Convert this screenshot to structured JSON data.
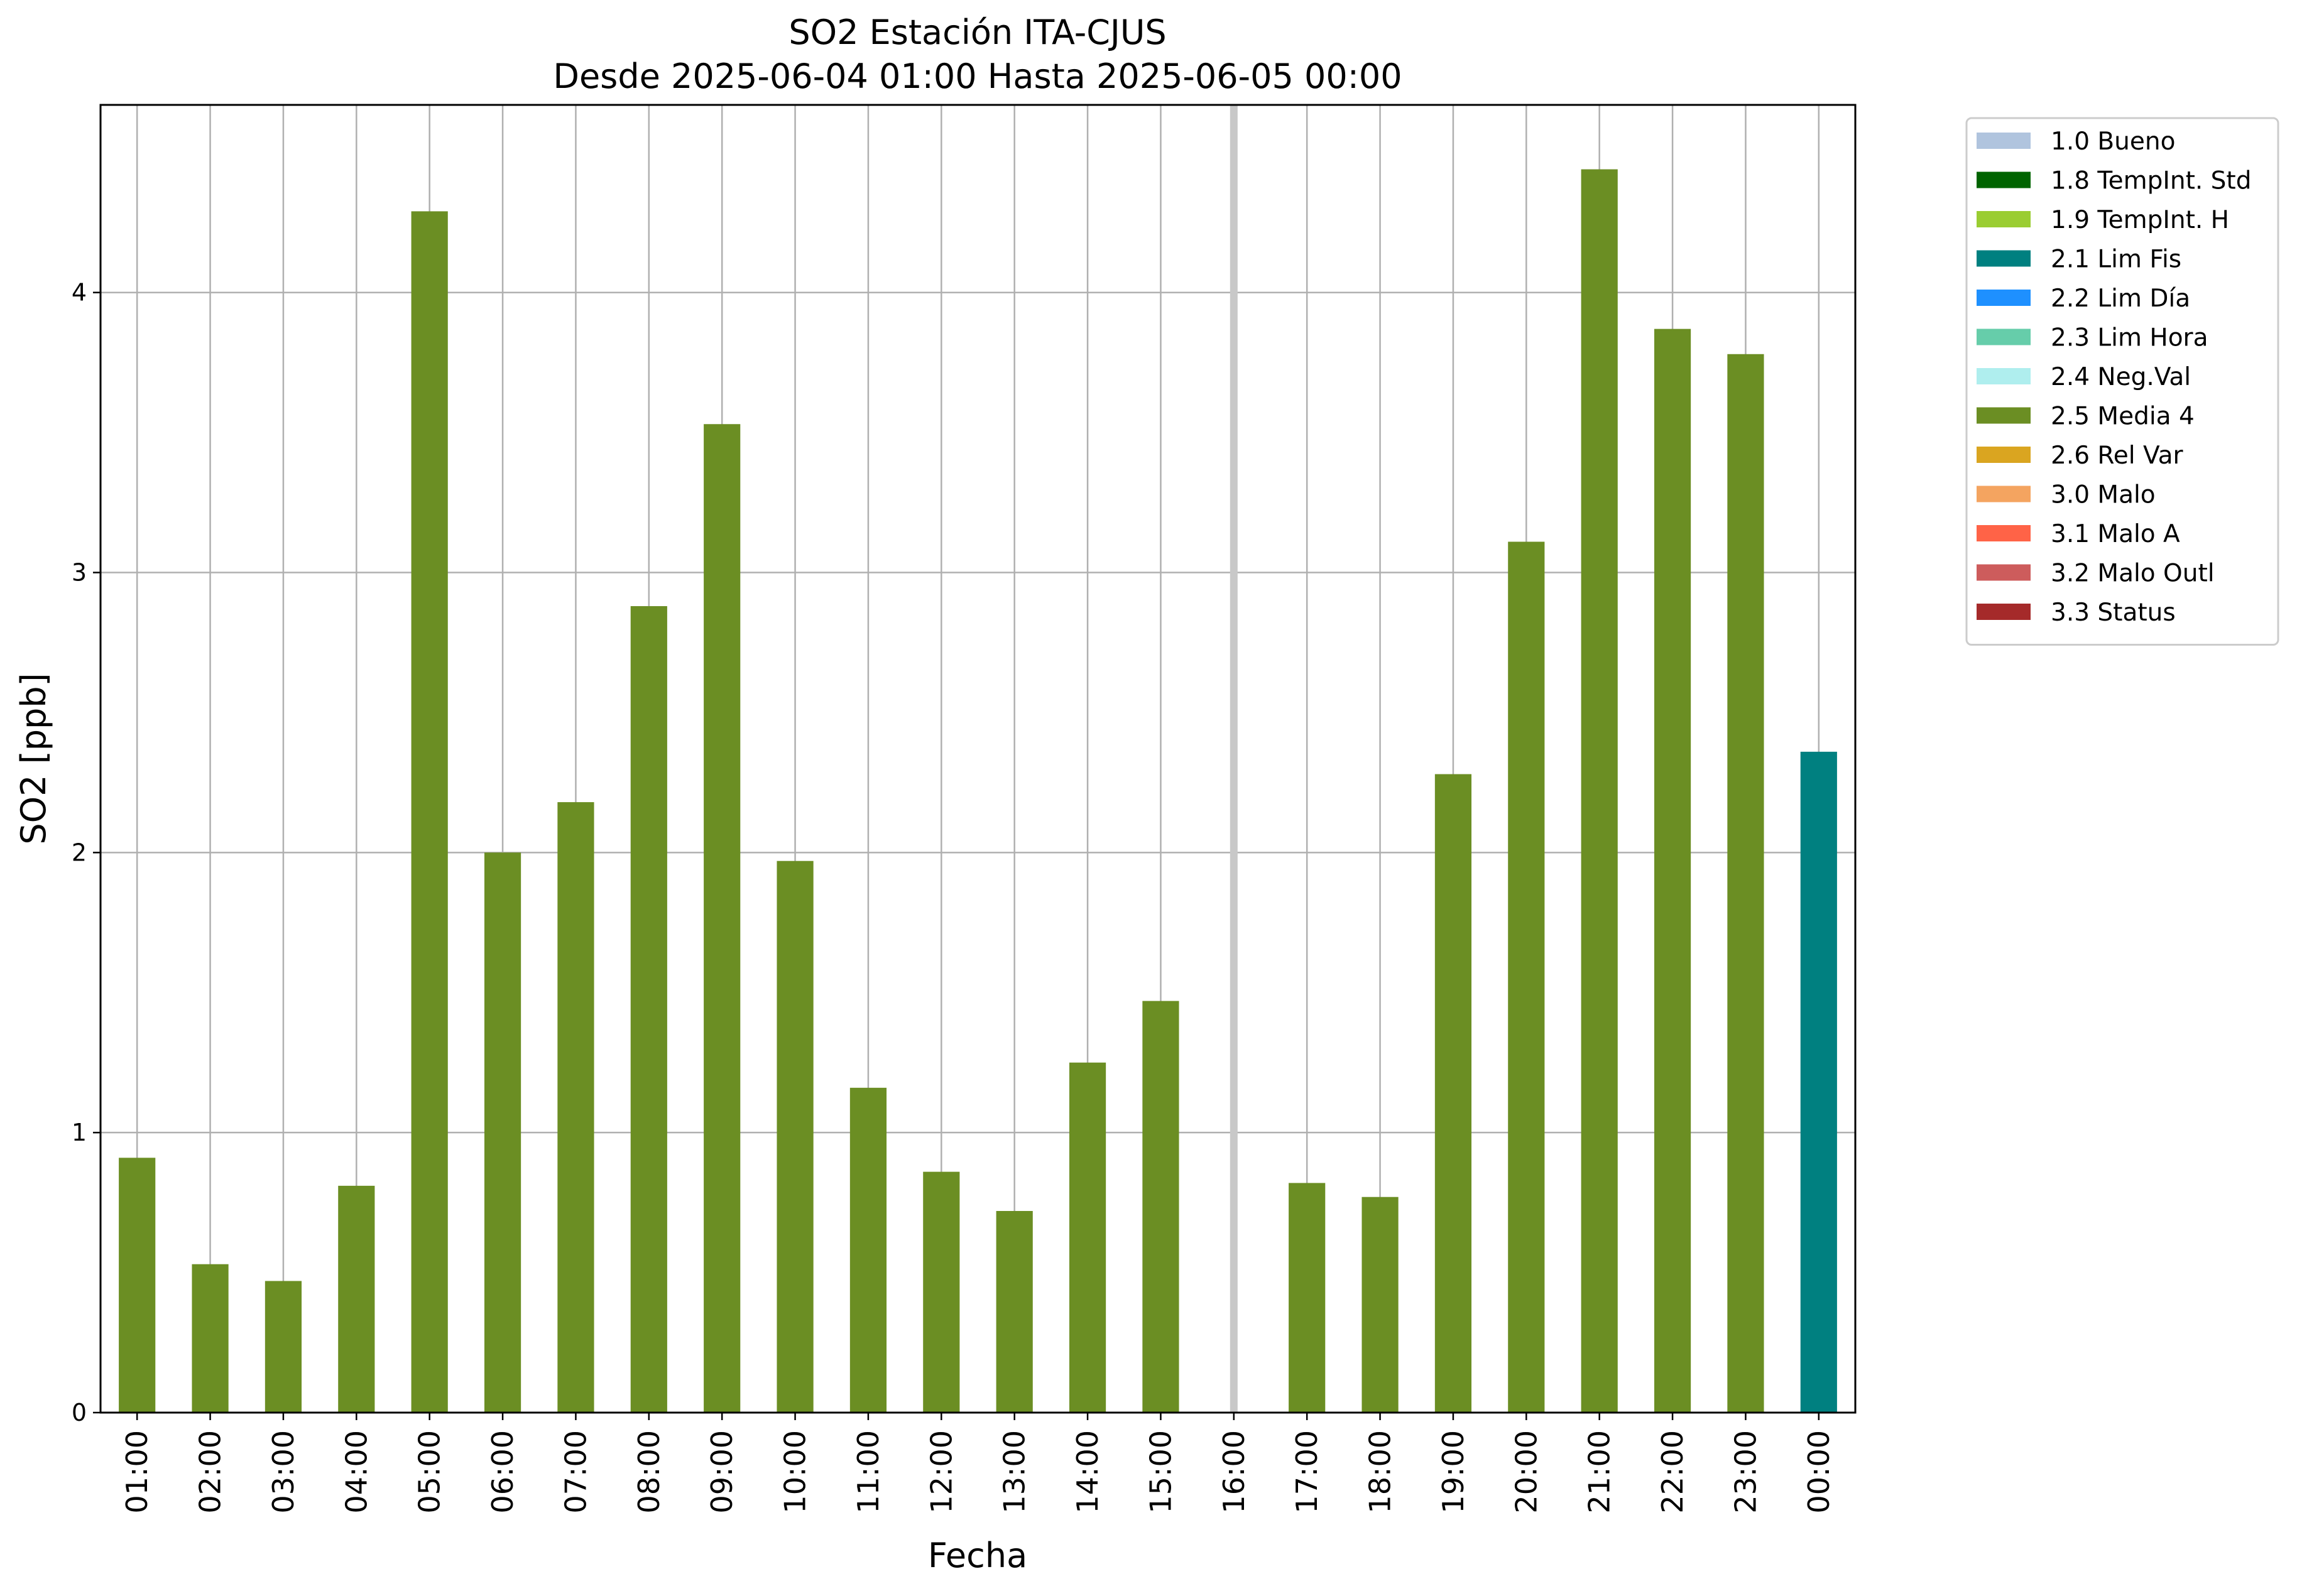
{
  "chart_data": {
    "type": "bar",
    "title": "SO2 Estación ITA-CJUS",
    "subtitle": "Desde 2025-06-04 01:00 Hasta 2025-06-05 00:00",
    "xlabel": "Fecha",
    "ylabel": "SO2 [ppb]",
    "ylim": [
      0,
      4.67
    ],
    "yticks": [
      0,
      1,
      2,
      3,
      4
    ],
    "grid": true,
    "legend_position": "outside-right",
    "categories": [
      "01:00",
      "02:00",
      "03:00",
      "04:00",
      "05:00",
      "06:00",
      "07:00",
      "08:00",
      "09:00",
      "10:00",
      "11:00",
      "12:00",
      "13:00",
      "14:00",
      "15:00",
      "16:00",
      "17:00",
      "18:00",
      "19:00",
      "20:00",
      "21:00",
      "22:00",
      "23:00",
      "00:00"
    ],
    "values": [
      0.91,
      0.53,
      0.47,
      0.81,
      4.29,
      2.0,
      2.18,
      2.88,
      3.53,
      1.97,
      1.16,
      0.86,
      0.72,
      1.25,
      1.47,
      null,
      0.82,
      0.77,
      2.28,
      3.11,
      4.44,
      3.87,
      3.78,
      2.36
    ],
    "flags": [
      "2.5 Media 4",
      "2.5 Media 4",
      "2.5 Media 4",
      "2.5 Media 4",
      "2.5 Media 4",
      "2.5 Media 4",
      "2.5 Media 4",
      "2.5 Media 4",
      "2.5 Media 4",
      "2.5 Media 4",
      "2.5 Media 4",
      "2.5 Media 4",
      "2.5 Media 4",
      "2.5 Media 4",
      "2.5 Media 4",
      "missing",
      "2.5 Media 4",
      "2.5 Media 4",
      "2.5 Media 4",
      "2.5 Media 4",
      "2.5 Media 4",
      "2.5 Media 4",
      "2.5 Media 4",
      "2.1 Lim Fis"
    ],
    "missing_marker_color": "#c8c8c8",
    "legend": [
      {
        "label": "1.0 Bueno",
        "color": "#b0c4de"
      },
      {
        "label": "1.8 TempInt. Std",
        "color": "#006400"
      },
      {
        "label": "1.9 TempInt. H",
        "color": "#9acd32"
      },
      {
        "label": "2.1 Lim Fis",
        "color": "#008080"
      },
      {
        "label": "2.2 Lim Día",
        "color": "#1e90ff"
      },
      {
        "label": "2.3 Lim Hora",
        "color": "#66cdaa"
      },
      {
        "label": "2.4 Neg.Val",
        "color": "#afeeee"
      },
      {
        "label": "2.5 Media 4",
        "color": "#6b8e23"
      },
      {
        "label": "2.6 Rel Var",
        "color": "#daa520"
      },
      {
        "label": "3.0 Malo",
        "color": "#f4a460"
      },
      {
        "label": "3.1 Malo A",
        "color": "#ff6347"
      },
      {
        "label": "3.2 Malo Outl",
        "color": "#cd5c5c"
      },
      {
        "label": "3.3 Status",
        "color": "#a52a2a"
      }
    ]
  }
}
